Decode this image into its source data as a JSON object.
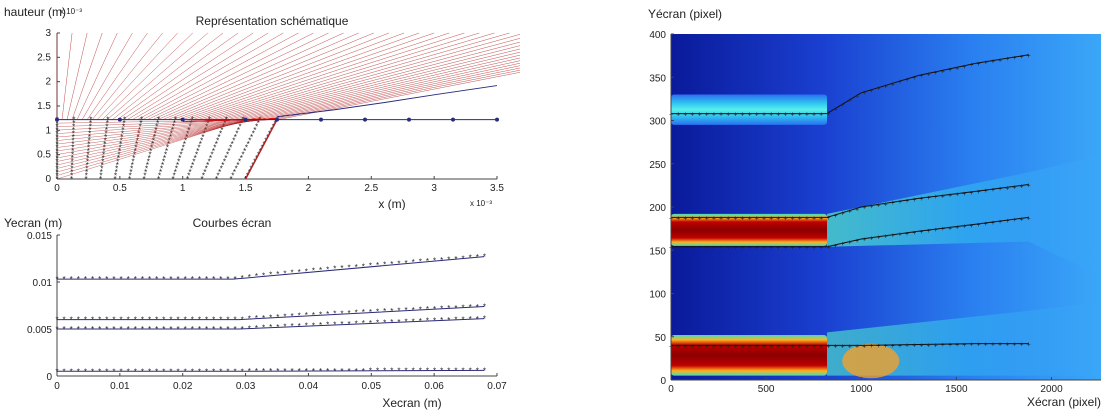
{
  "chart_data": [
    {
      "type": "line",
      "title": "Représentation schématique",
      "ylabel": "hauteur (m)",
      "xlabel": "x (m)",
      "x_scale_label": "x 10⁻³",
      "y_scale_label": "x 10⁻³",
      "xlim": [
        0,
        3.5
      ],
      "ylim": [
        0,
        3
      ],
      "xticks": [
        "0",
        "0.5",
        "1",
        "1.5",
        "2",
        "2.5",
        "3",
        "3.5"
      ],
      "yticks": [
        "0",
        "0.5",
        "1",
        "1.5",
        "2",
        "2.5",
        "3"
      ],
      "series": [
        {
          "role": "rays",
          "color": "#b22222"
        },
        {
          "role": "screen-line",
          "color": "#2b2b7a",
          "x": [
            0,
            0.5,
            1,
            1.5,
            1.75,
            2.1,
            2.45,
            2.8,
            3.15,
            3.5
          ],
          "y": [
            1.22,
            1.22,
            1.22,
            1.22,
            1.22,
            1.22,
            1.22,
            1.22,
            1.22,
            1.22
          ]
        },
        {
          "role": "curve",
          "color": "#2b2b7a",
          "x": [
            1.75,
            2.2,
            2.6,
            3.0,
            3.5
          ],
          "y": [
            1.28,
            1.42,
            1.57,
            1.73,
            1.92
          ]
        }
      ]
    },
    {
      "type": "line",
      "title": "Courbes écran",
      "ylabel": "Yecran (m)",
      "xlabel": "Xecran (m)",
      "xlim": [
        0,
        0.07
      ],
      "ylim": [
        0,
        0.015
      ],
      "xticks": [
        "0",
        "0.01",
        "0.02",
        "0.03",
        "0.04",
        "0.05",
        "0.06",
        "0.07"
      ],
      "yticks": [
        "0",
        "0.005",
        "0.01",
        "0.015"
      ],
      "color": "#2b2b7a",
      "series": [
        {
          "break_x": 0.028,
          "y0": 0.0103,
          "y_end": 0.0127
        },
        {
          "break_x": 0.029,
          "y0": 0.006,
          "y_end": 0.0074
        },
        {
          "break_x": 0.029,
          "y0": 0.005,
          "y_end": 0.0061
        },
        {
          "break_x": 0.029,
          "y0": 0.0005,
          "y_end": 0.0006
        }
      ],
      "x_end": 0.068
    },
    {
      "type": "heatmap",
      "ylabel": "Yécran (pixel)",
      "xlabel": "Xécran (pixel)",
      "xlim": [
        0,
        2260
      ],
      "ylim": [
        0,
        400
      ],
      "xticks": [
        "0",
        "500",
        "1000",
        "1500",
        "2000"
      ],
      "yticks": [
        "0",
        "50",
        "100",
        "150",
        "200",
        "250",
        "300",
        "350",
        "400"
      ],
      "bands": [
        {
          "y_low": 295,
          "y_high": 330,
          "x_end": 820,
          "level": "low"
        },
        {
          "y_low": 155,
          "y_high": 192,
          "x_end": 820,
          "level": "high"
        },
        {
          "y_low": 5,
          "y_high": 52,
          "x_end": 820,
          "level": "high"
        }
      ],
      "overlay_curves": [
        {
          "x": [
            0,
            820,
            1000,
            1300,
            1600,
            1880
          ],
          "y": [
            308,
            308,
            332,
            352,
            366,
            376
          ]
        },
        {
          "x": [
            0,
            820,
            1000,
            1300,
            1600,
            1880
          ],
          "y": [
            188,
            188,
            200,
            210,
            218,
            226
          ]
        },
        {
          "x": [
            0,
            820,
            1000,
            1300,
            1600,
            1880
          ],
          "y": [
            154,
            154,
            163,
            172,
            180,
            188
          ]
        },
        {
          "x": [
            0,
            820,
            1000,
            1300,
            1600,
            1880
          ],
          "y": [
            40,
            40,
            40,
            41,
            42,
            42
          ]
        }
      ]
    }
  ]
}
